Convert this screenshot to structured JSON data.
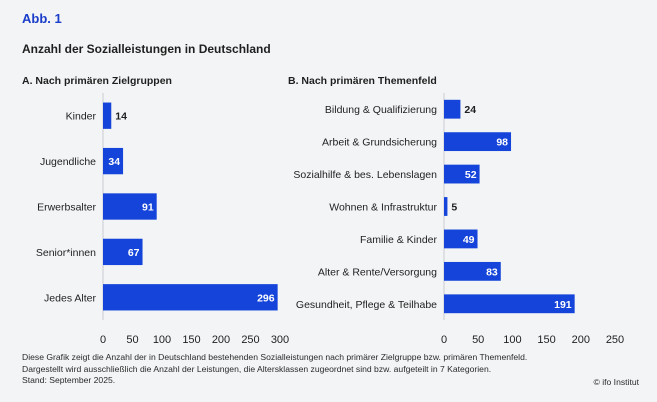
{
  "figure_label": "Abb. 1",
  "main_title": "Anzahl der Sozialleistungen in Deutschland",
  "footnote": {
    "line1": "Diese Grafik zeigt die Anzahl der in Deutschland bestehenden Sozialleistungen nach primärer Zielgruppe bzw. primären Themenfeld.",
    "line2": "Dargestellt wird ausschließlich die Anzahl der Leistungen, die Altersklassen zugeordnet sind bzw. aufgeteilt in 7 Kategorien.",
    "line3": "Stand: September 2025.",
    "copyright": "© ifo Institut"
  },
  "colors": {
    "bar": "#1444d9",
    "title_accent": "#1a3ec9",
    "background": "#f3f4f6"
  },
  "chart_data": [
    {
      "type": "bar",
      "orientation": "horizontal",
      "title": "A. Nach primären Zielgruppen",
      "categories": [
        "Kinder",
        "Jugendliche",
        "Erwerbsalter",
        "Senior*innen",
        "Jedes Alter"
      ],
      "values": [
        14,
        34,
        91,
        67,
        296
      ],
      "xlim": [
        0,
        300
      ],
      "xticks": [
        0,
        50,
        100,
        150,
        200,
        250,
        300
      ]
    },
    {
      "type": "bar",
      "orientation": "horizontal",
      "title": "B. Nach primären Themenfeld",
      "categories": [
        "Bildung & Qualifizierung",
        "Arbeit & Grundsicherung",
        "Sozialhilfe & bes. Lebenslagen",
        "Wohnen & Infrastruktur",
        "Familie & Kinder",
        "Alter & Rente/Versorgung",
        "Gesundheit, Pflege & Teilhabe"
      ],
      "values": [
        24,
        98,
        52,
        5,
        49,
        83,
        191
      ],
      "xlim": [
        0,
        260
      ],
      "xticks": [
        0,
        50,
        100,
        150,
        200,
        250
      ]
    }
  ]
}
